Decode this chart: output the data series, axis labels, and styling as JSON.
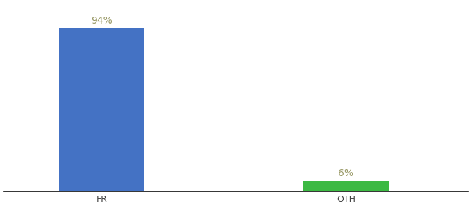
{
  "categories": [
    "FR",
    "OTH"
  ],
  "values": [
    94,
    6
  ],
  "bar_colors": [
    "#4472c4",
    "#3cb943"
  ],
  "label_color": "#999966",
  "labels": [
    "94%",
    "6%"
  ],
  "background_color": "#ffffff",
  "ylim": [
    0,
    108
  ],
  "bar_width": 0.35,
  "label_fontsize": 10,
  "tick_fontsize": 9,
  "axis_line_color": "#111111"
}
